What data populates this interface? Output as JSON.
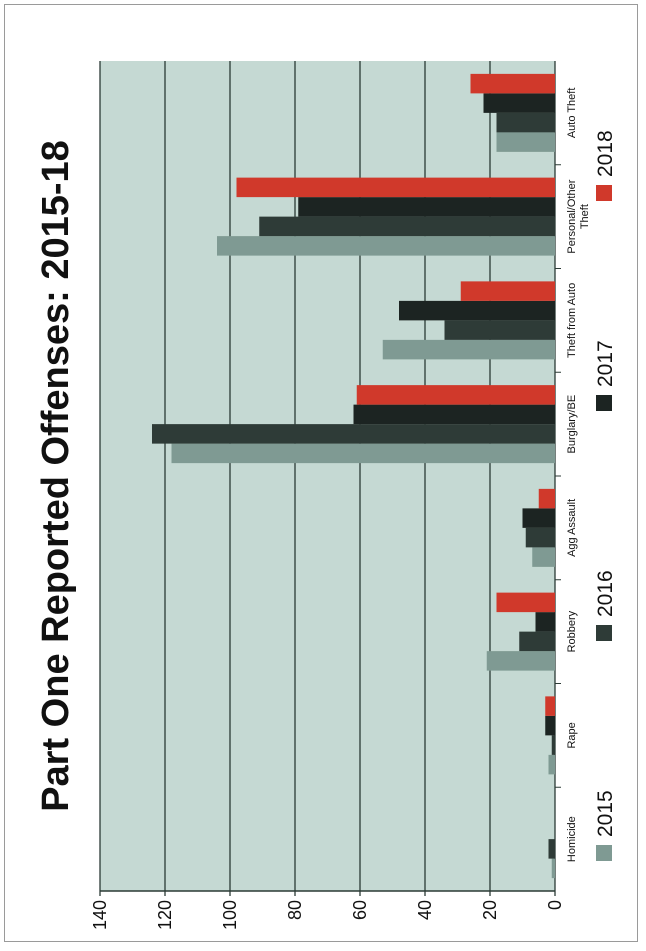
{
  "chart_data": {
    "type": "bar",
    "orientation": "vertical-bars, page rotated 90 degrees",
    "title": "Part One Reported Offenses: 2015-18",
    "categories": [
      "Homicide",
      "Rape",
      "Robbery",
      "Agg Assault",
      "Burglary/BE",
      "Theft from Auto",
      "Personal/Other Theft",
      "Auto Theft"
    ],
    "series": [
      {
        "name": "2015",
        "color": "#7f9a93",
        "values": [
          1,
          2,
          21,
          7,
          118,
          53,
          104,
          18
        ]
      },
      {
        "name": "2016",
        "color": "#2e3b37",
        "values": [
          2,
          1,
          11,
          9,
          124,
          34,
          91,
          18
        ]
      },
      {
        "name": "2017",
        "color": "#1c2422",
        "values": [
          0,
          3,
          6,
          10,
          62,
          48,
          79,
          22
        ]
      },
      {
        "name": "2018",
        "color": "#d0392b",
        "values": [
          0,
          3,
          18,
          5,
          61,
          29,
          98,
          26
        ]
      }
    ],
    "yticks": [
      "0",
      "20",
      "40",
      "60",
      "80",
      "100",
      "120",
      "140"
    ],
    "ylim": [
      0,
      140
    ],
    "grid": true,
    "legend_position": "bottom",
    "colors": {
      "plot_background": "#c5d9d3",
      "gridline": "#2b3a35",
      "axis": "#2b3a35"
    }
  }
}
